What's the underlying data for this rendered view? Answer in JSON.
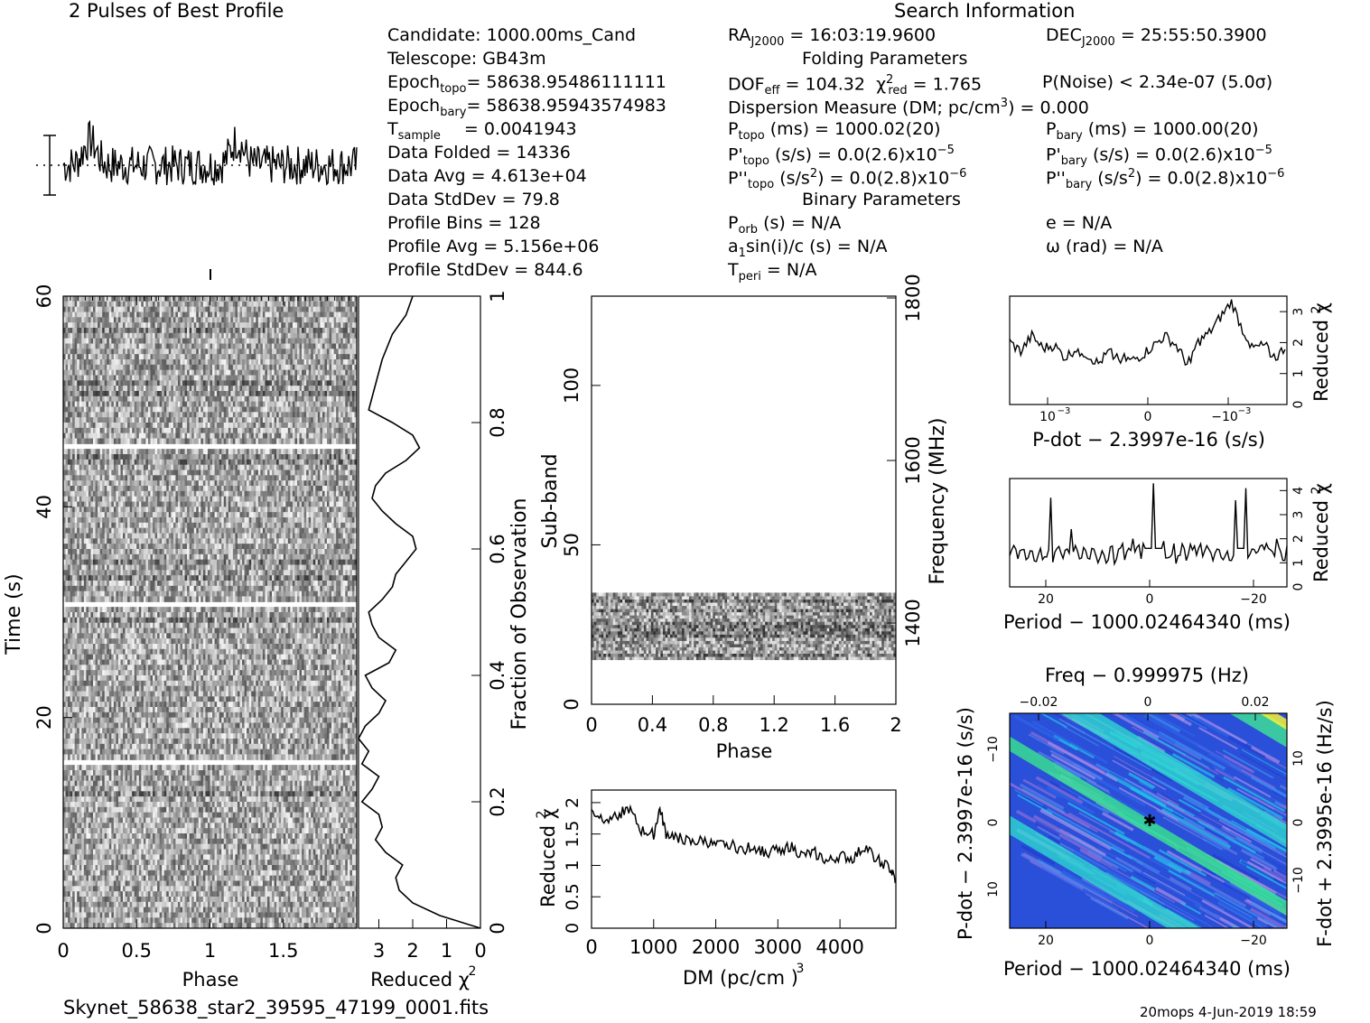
{
  "profile_title": "2 Pulses of Best Profile",
  "search_title": "Search Information",
  "info": {
    "candidate": "Candidate:  1000.00ms_Cand",
    "telescope": "Telescope:  GB43m",
    "epoch_topo": "Epoch",
    "epoch_topo_sub": "topo",
    "epoch_topo_val": "= 58638.95486111111",
    "epoch_bary": "Epoch",
    "epoch_bary_sub": "bary",
    "epoch_bary_val": "= 58638.95943574983",
    "t_sample": "T",
    "t_sample_sub": "sample",
    "t_sample_val": "=   0.0041943",
    "data_folded": "Data Folded      =   14336",
    "data_avg": "Data Avg           =   4.613e+04",
    "data_std": "Data StdDev      =   79.8",
    "profile_bins": "Profile Bins       =   128",
    "profile_avg": "Profile Avg        =   5.156e+06",
    "profile_std": "Profile StdDev  =   844.6"
  },
  "search": {
    "ra": "RA",
    "ra_sub": "J2000",
    "ra_val": " = 16:03:19.9600",
    "dec": "DEC",
    "dec_sub": "J2000",
    "dec_val": " = 25:55:50.3900",
    "folding_title": "Folding Parameters",
    "dof": "DOF",
    "dof_sub": "eff",
    "dof_val": " = 104.32",
    "chi": "χ",
    "chi_sup": "2",
    "chi_sub": "red",
    "chi_val": " = 1.765",
    "pnoise": "P(Noise) < 2.34e-07   (5.0σ)",
    "dm": "Dispersion Measure (DM; pc/cm",
    "dm_sup": "3",
    "dm_val": ") = 0.000",
    "ptopo": "P",
    "ptopo_sub": "topo",
    "ptopo_val": " (ms) =  1000.02(20)",
    "pbary": "P",
    "pbary_sub": "bary",
    "pbary_val": " (ms) =  1000.00(20)",
    "pdtopo": "P'",
    "pdtopo_sub": "topo",
    "pdtopo_val": " (s/s) = 0.0(2.6)x10",
    "pdtopo_exp": "−5",
    "pdbary": "P'",
    "pdbary_sub": "bary",
    "pdbary_val": " (s/s) = 0.0(2.6)x10",
    "pdbary_exp": "−5",
    "pddtopo": "P''",
    "pddtopo_sub": "topo",
    "pddtopo_val": " (s/s",
    "pddtopo_sup": "2",
    "pddtopo_val2": ") = 0.0(2.8)x10",
    "pddtopo_exp": "−6",
    "pddbary": "P''",
    "pddbary_sub": "bary",
    "pddbary_val": " (s/s",
    "pddbary_sup": "2",
    "pddbary_val2": ") = 0.0(2.8)x10",
    "pddbary_exp": "−6",
    "binary_title": "Binary Parameters",
    "porb": "P",
    "porb_sub": "orb",
    "porb_val": " (s) = N/A",
    "ecc": "e = N/A",
    "a1": "a",
    "a1_sub": "1",
    "a1_val": "sin(i)/c (s) = N/A",
    "omega": "ω (rad) = N/A",
    "tperi": "T",
    "tperi_sub": "peri",
    "tperi_val": " = N/A"
  },
  "footer": {
    "filename": "Skynet_58638_star2_39595_47199_0001.fits",
    "stamp": "20mops   4-Jun-2019 18:59"
  },
  "chart_data": [
    {
      "id": "profile",
      "type": "line",
      "title": "2 Pulses of Best Profile",
      "description_values": "Two periods of folded profile, 128 bins each; peaks near phase 0.17 and 1.17",
      "xlim": [
        0,
        2
      ]
    },
    {
      "id": "time_phase",
      "type": "heatmap",
      "xlabel": "Phase",
      "ylabel": "Time (s)",
      "xlim": [
        0,
        2
      ],
      "ylim": [
        0,
        60
      ],
      "x_ticks": [
        "0",
        "0.5",
        "1",
        "1.5"
      ],
      "y_ticks": [
        "0",
        "20",
        "40",
        "60"
      ],
      "blank_rows_s": [
        16,
        31,
        46
      ]
    },
    {
      "id": "time_redchi",
      "type": "line",
      "xlabel": "Reduced χ2",
      "ylabel": "Fraction of Observation",
      "x_ticks": [
        "3",
        "2",
        "1",
        "0"
      ],
      "y_ticks": [
        "0",
        "0.2",
        "0.4",
        "0.6",
        "0.8",
        "1"
      ],
      "xlim": [
        3.6,
        0
      ],
      "ylim": [
        0,
        1
      ],
      "x": [
        0.0,
        1.2,
        2.0,
        2.4,
        2.5,
        2.3,
        2.8,
        3.1,
        2.9,
        3.0,
        3.5,
        3.2,
        3.0,
        3.5,
        3.3,
        3.6,
        3.4,
        3.0,
        2.8,
        3.2,
        3.4,
        2.7,
        2.5,
        3.0,
        3.2,
        3.3,
        2.9,
        2.6,
        2.5,
        2.2,
        1.9,
        2.0,
        2.5,
        2.9,
        3.2,
        3.1,
        2.8,
        2.2,
        1.8,
        2.0,
        2.6,
        3.3,
        3.1,
        2.9,
        2.6,
        2.2,
        2.0
      ],
      "y": [
        0.0,
        0.02,
        0.04,
        0.06,
        0.08,
        0.1,
        0.12,
        0.14,
        0.16,
        0.18,
        0.2,
        0.22,
        0.24,
        0.26,
        0.28,
        0.3,
        0.32,
        0.34,
        0.36,
        0.38,
        0.4,
        0.42,
        0.44,
        0.46,
        0.48,
        0.5,
        0.52,
        0.54,
        0.56,
        0.58,
        0.6,
        0.62,
        0.64,
        0.66,
        0.68,
        0.7,
        0.72,
        0.74,
        0.76,
        0.78,
        0.8,
        0.82,
        0.86,
        0.9,
        0.94,
        0.97,
        1.0
      ]
    },
    {
      "id": "subband_phase",
      "type": "heatmap",
      "xlabel": "Phase",
      "ylabel": "Sub-band",
      "ylabel_right": "Frequency (MHz)",
      "x_ticks": [
        "0",
        "0.4",
        "0.8",
        "1.2",
        "1.6",
        "2"
      ],
      "y_ticks": [
        "0",
        "50",
        "100"
      ],
      "y_ticks_right": [
        "1400",
        "1600",
        "1800"
      ],
      "xlim": [
        0,
        2
      ],
      "ylim": [
        0,
        128
      ],
      "band_rows": [
        14,
        35
      ]
    },
    {
      "id": "dm_chi",
      "type": "line",
      "xlabel": "DM (pc/cm3)",
      "ylabel": "Reduced χ2",
      "x_ticks": [
        "0",
        "1000",
        "2000",
        "3000",
        "4000"
      ],
      "y_ticks": [
        "0",
        "0.5",
        "1",
        "1.5",
        "2"
      ],
      "xlim": [
        0,
        4900
      ],
      "ylim": [
        0,
        2.2
      ],
      "x": [
        0,
        200,
        400,
        600,
        800,
        1000,
        1100,
        1200,
        1400,
        1600,
        1800,
        2000,
        2200,
        2400,
        2600,
        2800,
        3000,
        3200,
        3400,
        3600,
        3800,
        4000,
        4200,
        4400,
        4600,
        4800,
        4900
      ],
      "y": [
        1.85,
        1.75,
        1.8,
        1.9,
        1.55,
        1.5,
        1.9,
        1.5,
        1.45,
        1.35,
        1.4,
        1.3,
        1.35,
        1.25,
        1.3,
        1.2,
        1.25,
        1.3,
        1.15,
        1.2,
        1.05,
        1.15,
        1.1,
        1.3,
        1.1,
        0.95,
        0.75
      ]
    },
    {
      "id": "pdot_chi",
      "type": "line",
      "xlabel": "P-dot − 2.3997e-16 (s/s)",
      "ylabel": "Reduced χ2",
      "x_ticks": [
        "10−3",
        "0",
        "−10−3"
      ],
      "y_ticks": [
        "0",
        "1",
        "2",
        "3"
      ],
      "ylim": [
        0,
        3.5
      ],
      "y": [
        2.0,
        1.7,
        2.2,
        1.8,
        1.9,
        1.5,
        1.8,
        1.6,
        1.3,
        1.7,
        1.5,
        1.4,
        1.6,
        1.9,
        2.2,
        1.9,
        1.3,
        2.0,
        2.3,
        2.8,
        3.3,
        2.4,
        1.8,
        1.9,
        1.5,
        1.9
      ]
    },
    {
      "id": "period_chi",
      "type": "line",
      "xlabel": "Period − 1000.02464340 (ms)",
      "ylabel": "Reduced χ2",
      "x_ticks": [
        "20",
        "0",
        "−20"
      ],
      "y_ticks": [
        "0",
        "1",
        "2",
        "3",
        "4"
      ],
      "ylim": [
        0,
        4.5
      ],
      "y": [
        1.3,
        1.5,
        1.5,
        1.6,
        3.7,
        1.4,
        2.4,
        1.2,
        1.6,
        1.5,
        1.7,
        1.8,
        2.0,
        1.8,
        4.3,
        1.9,
        1.8,
        1.6,
        1.7,
        1.5,
        1.4,
        1.3,
        3.6,
        4.1,
        1.4,
        1.8,
        2.0,
        1.7
      ]
    },
    {
      "id": "ppdot_plane",
      "type": "heatmap",
      "xlabel": "Period − 1000.02464340 (ms)",
      "xlabel_top": "Freq − 0.999975 (Hz)",
      "ylabel": "P-dot − 2.3997e-16 (s/s)",
      "ylabel_right": "F-dot + 2.3995e-16 (Hz/s)",
      "x_ticks": [
        "20",
        "0",
        "−20"
      ],
      "x_ticks_top": [
        "−0.02",
        "0",
        "0.02"
      ],
      "y_ticks": [
        "10−3",
        "0",
        "−10−3"
      ],
      "y_ticks_right": [
        "−10−3",
        "0",
        "10−3"
      ]
    }
  ]
}
